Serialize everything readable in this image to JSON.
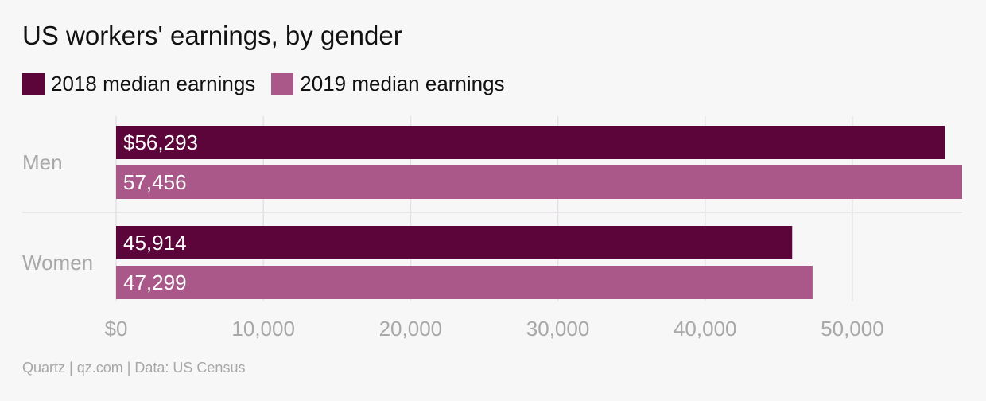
{
  "title": "US workers' earnings, by gender",
  "footer": "Quartz | qz.com | Data: US Census",
  "colors": {
    "series_2018": "#5b053b",
    "series_2019": "#aa5889",
    "grid": "#e3e1e3",
    "axis_text": "#a8a8a8",
    "bar_label": "#ffffff"
  },
  "chart_data": {
    "type": "bar",
    "orientation": "horizontal",
    "categories": [
      "Men",
      "Women"
    ],
    "series": [
      {
        "name": "2018 median earnings",
        "values": [
          56293,
          45914
        ],
        "labels": [
          "$56,293",
          "45,914"
        ]
      },
      {
        "name": "2019 median earnings",
        "values": [
          57456,
          47299
        ],
        "labels": [
          "57,456",
          "47,299"
        ]
      }
    ],
    "xlim": [
      0,
      57456
    ],
    "x_ticks": [
      0,
      10000,
      20000,
      30000,
      40000,
      50000
    ],
    "x_tick_labels": [
      "$0",
      "10,000",
      "20,000",
      "30,000",
      "40,000",
      "50,000"
    ],
    "grid": true,
    "legend_position": "top-left"
  }
}
